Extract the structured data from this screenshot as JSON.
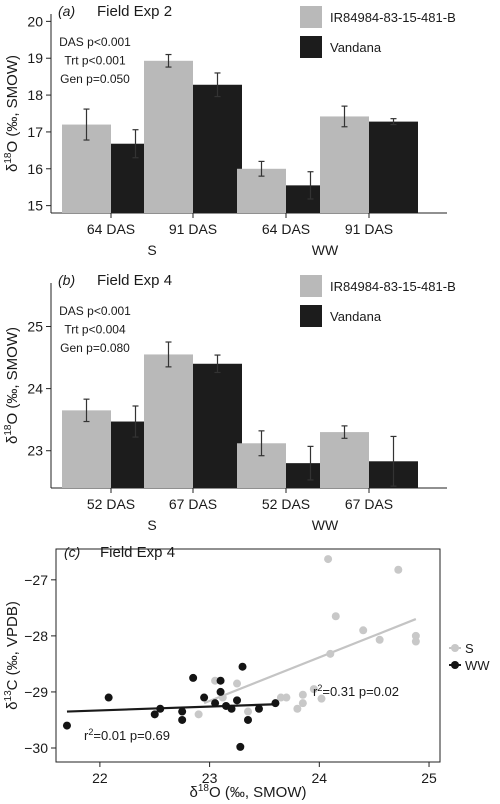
{
  "colors": {
    "light": "#b9b9b9",
    "dark": "#1c1c1c",
    "s_points": "#c8c8c8",
    "ww_points": "#141414",
    "s_line": "#c4c4c4",
    "ww_line": "#1a1a1a"
  },
  "chart_data": [
    {
      "type": "bar",
      "panel_label": "(a)",
      "title": "Field Exp 2",
      "ylabel": "δ18O (‰, SMOW)",
      "ylim": [
        14.8,
        20.2
      ],
      "yticks": [
        15,
        16,
        17,
        18,
        19,
        20
      ],
      "categories": [
        "64 DAS",
        "91 DAS",
        "64 DAS",
        "91 DAS"
      ],
      "groups": [
        {
          "label": "S",
          "categories": [
            0,
            1
          ]
        },
        {
          "label": "WW",
          "categories": [
            2,
            3
          ]
        }
      ],
      "series": [
        {
          "name": "IR84984-83-15-481-B",
          "values": [
            17.2,
            18.93,
            16.0,
            17.42
          ],
          "errors": [
            0.42,
            0.17,
            0.2,
            0.28
          ]
        },
        {
          "name": "Vandana",
          "values": [
            16.68,
            18.28,
            15.55,
            17.28
          ],
          "errors": [
            0.38,
            0.32,
            0.37,
            0.08
          ]
        }
      ],
      "stats": [
        "DAS p<0.001",
        "Trt p<0.001",
        "Gen p=0.050"
      ],
      "legend_position": "top-right"
    },
    {
      "type": "bar",
      "panel_label": "(b)",
      "title": "Field Exp 4",
      "ylabel": "δ18O (‰, SMOW)",
      "ylim": [
        22.4,
        25.7
      ],
      "yticks": [
        23,
        24,
        25
      ],
      "categories": [
        "52 DAS",
        "67 DAS",
        "52 DAS",
        "67 DAS"
      ],
      "groups": [
        {
          "label": "S",
          "categories": [
            0,
            1
          ]
        },
        {
          "label": "WW",
          "categories": [
            2,
            3
          ]
        }
      ],
      "series": [
        {
          "name": "IR84984-83-15-481-B",
          "values": [
            23.65,
            24.55,
            23.12,
            23.3
          ],
          "errors": [
            0.18,
            0.2,
            0.2,
            0.1
          ]
        },
        {
          "name": "Vandana",
          "values": [
            23.47,
            24.4,
            22.8,
            22.83
          ],
          "errors": [
            0.25,
            0.14,
            0.27,
            0.4
          ]
        }
      ],
      "stats": [
        "DAS p<0.001",
        "Trt p<0.004",
        "Gen p=0.080"
      ],
      "legend_position": "top-right"
    },
    {
      "type": "scatter",
      "panel_label": "(c)",
      "title": "Field Exp 4",
      "xlabel": "δ18O (‰, SMOW)",
      "ylabel": "δ13C (‰, VPDB)",
      "xlim": [
        21.6,
        25.1
      ],
      "ylim": [
        -30.25,
        -26.45
      ],
      "xticks": [
        22,
        23,
        24,
        25
      ],
      "yticks": [
        -30,
        -29,
        -28,
        -27
      ],
      "legend_position": "right",
      "series": [
        {
          "name": "S",
          "points": [
            [
              24.08,
              -26.63
            ],
            [
              24.72,
              -26.82
            ],
            [
              24.15,
              -27.65
            ],
            [
              24.1,
              -28.32
            ],
            [
              24.4,
              -27.9
            ],
            [
              24.55,
              -28.07
            ],
            [
              24.88,
              -28.0
            ],
            [
              24.88,
              -28.1
            ],
            [
              23.95,
              -28.95
            ],
            [
              23.85,
              -29.05
            ],
            [
              23.85,
              -29.2
            ],
            [
              23.7,
              -29.1
            ],
            [
              23.65,
              -29.1
            ],
            [
              23.8,
              -29.3
            ],
            [
              24.02,
              -29.12
            ],
            [
              23.35,
              -29.35
            ],
            [
              23.12,
              -29.1
            ],
            [
              22.9,
              -29.4
            ],
            [
              23.25,
              -28.85
            ],
            [
              23.05,
              -28.8
            ]
          ],
          "fit": {
            "x": [
              22.95,
              24.88
            ],
            "y": [
              -29.2,
              -27.7
            ]
          },
          "annotation": "r2=0.31  p=0.02"
        },
        {
          "name": "WW",
          "points": [
            [
              21.7,
              -29.6
            ],
            [
              22.08,
              -29.1
            ],
            [
              22.5,
              -29.4
            ],
            [
              22.55,
              -29.3
            ],
            [
              22.75,
              -29.5
            ],
            [
              22.75,
              -29.35
            ],
            [
              22.85,
              -28.75
            ],
            [
              22.95,
              -29.1
            ],
            [
              23.1,
              -28.8
            ],
            [
              23.1,
              -29.0
            ],
            [
              23.15,
              -29.25
            ],
            [
              23.2,
              -29.3
            ],
            [
              23.25,
              -29.15
            ],
            [
              23.3,
              -28.55
            ],
            [
              23.35,
              -29.5
            ],
            [
              23.45,
              -29.3
            ],
            [
              23.6,
              -29.2
            ],
            [
              23.28,
              -29.98
            ],
            [
              23.05,
              -29.2
            ]
          ],
          "fit": {
            "x": [
              21.7,
              23.6
            ],
            "y": [
              -29.35,
              -29.22
            ]
          },
          "annotation": "r2=0.01  p=0.69"
        }
      ]
    }
  ]
}
